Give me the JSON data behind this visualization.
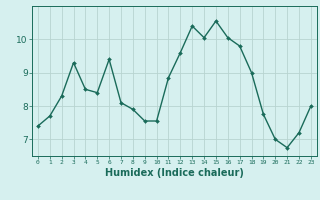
{
  "x": [
    0,
    1,
    2,
    3,
    4,
    5,
    6,
    7,
    8,
    9,
    10,
    11,
    12,
    13,
    14,
    15,
    16,
    17,
    18,
    19,
    20,
    21,
    22,
    23
  ],
  "y": [
    7.4,
    7.7,
    8.3,
    9.3,
    8.5,
    8.4,
    9.4,
    8.1,
    7.9,
    7.55,
    7.55,
    8.85,
    9.6,
    10.4,
    10.05,
    10.55,
    10.05,
    9.8,
    9.0,
    7.75,
    7.0,
    6.75,
    7.2,
    8.0
  ],
  "line_color": "#1a6b5a",
  "marker": "D",
  "marker_size": 2.0,
  "line_width": 1.0,
  "bg_color": "#d6f0ef",
  "grid_color": "#b8d4d0",
  "tick_color": "#1a6b5a",
  "xlabel": "Humidex (Indice chaleur)",
  "xlabel_fontsize": 7,
  "yticks": [
    7,
    8,
    9,
    10
  ],
  "ylim": [
    6.5,
    11.0
  ],
  "xlim": [
    -0.5,
    23.5
  ],
  "title": ""
}
